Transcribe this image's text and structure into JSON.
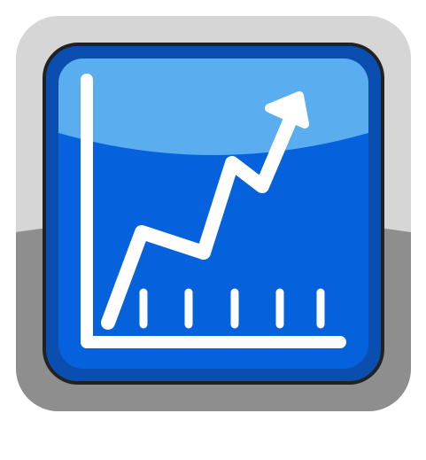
{
  "icon": {
    "name": "rising-line-chart-icon",
    "colors": {
      "background": "#ffffff",
      "bezel_top": "#d6d6d6",
      "bezel_bottom": "#8e8e8e",
      "frame_outline": "#222222",
      "frame_blue": "#0a4fb0",
      "face_blue": "#0661dd",
      "gloss": "#5aaef0",
      "strokes": "#ffffff"
    },
    "trend": {
      "direction": "up",
      "arrowhead": true
    }
  }
}
